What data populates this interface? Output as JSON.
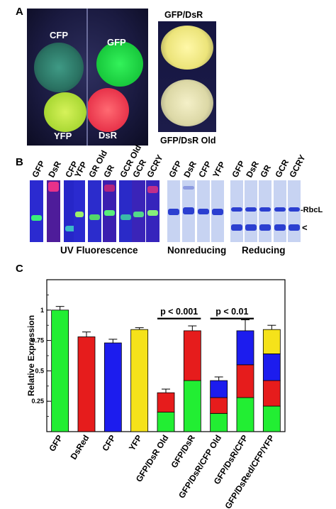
{
  "panels": {
    "a": "A",
    "b": "B",
    "c": "C"
  },
  "panel_a": {
    "leaf_labels": [
      "CFP",
      "GFP",
      "YFP",
      "DsR"
    ],
    "right_top_label": "GFP/DsR",
    "right_bottom_label": "GFP/DsR Old"
  },
  "panel_b": {
    "uv_lane_labels": [
      "GFP",
      "DsR",
      "CFP",
      "YFP",
      "GR Old",
      "GR",
      "GCR Old",
      "GCR",
      "GCRY"
    ],
    "nonreducing_lane_labels": [
      "GFP",
      "DsR",
      "CFP",
      "YFP"
    ],
    "reducing_lane_labels": [
      "GFP",
      "DsR",
      "GR",
      "GCR",
      "GCRY"
    ],
    "rbcl_label": "-RbcL",
    "arrow_label": "<",
    "captions": {
      "uv": "UV Fluorescence",
      "nonreducing": "Nonreducing",
      "reducing": "Reducing"
    }
  },
  "chart_data": {
    "type": "bar",
    "stacked": true,
    "ylabel": "Relative Expression",
    "ylim": [
      0,
      1.25
    ],
    "yticks": [
      0.25,
      0.5,
      0.75,
      1
    ],
    "ytick_labels": [
      "0.25",
      "0.5",
      "0.75",
      "1"
    ],
    "categories": [
      "GFP",
      "DsRed",
      "CFP",
      "YFP",
      "GFP/DsR Old",
      "GFP/DsR",
      "GFP/DsR/CFP Old",
      "GFP/DsR/CFP",
      "GFP/DsRed/CFP/YFP"
    ],
    "colors": {
      "green": "#22ee33",
      "red": "#e61c1c",
      "blue": "#1c1cee",
      "yellow": "#f5e21a"
    },
    "bars": [
      {
        "segments": [
          {
            "color": "green",
            "value": 1.0
          }
        ],
        "error": 0.03
      },
      {
        "segments": [
          {
            "color": "red",
            "value": 0.78
          }
        ],
        "error": 0.04
      },
      {
        "segments": [
          {
            "color": "blue",
            "value": 0.73
          }
        ],
        "error": 0.03
      },
      {
        "segments": [
          {
            "color": "yellow",
            "value": 0.84
          }
        ],
        "error": 0.015
      },
      {
        "segments": [
          {
            "color": "green",
            "value": 0.16
          },
          {
            "color": "red",
            "value": 0.16
          }
        ],
        "error": 0.03
      },
      {
        "segments": [
          {
            "color": "green",
            "value": 0.42
          },
          {
            "color": "red",
            "value": 0.41
          }
        ],
        "error": 0.04
      },
      {
        "segments": [
          {
            "color": "green",
            "value": 0.15
          },
          {
            "color": "red",
            "value": 0.13
          },
          {
            "color": "blue",
            "value": 0.14
          }
        ],
        "error": 0.03
      },
      {
        "segments": [
          {
            "color": "green",
            "value": 0.28
          },
          {
            "color": "red",
            "value": 0.27
          },
          {
            "color": "blue",
            "value": 0.28
          }
        ],
        "error": 0.09
      },
      {
        "segments": [
          {
            "color": "green",
            "value": 0.21
          },
          {
            "color": "red",
            "value": 0.21
          },
          {
            "color": "blue",
            "value": 0.22
          },
          {
            "color": "yellow",
            "value": 0.2
          }
        ],
        "error": 0.035
      }
    ],
    "annotations": [
      {
        "text": "p < 0.001",
        "from": 4,
        "to": 5,
        "y": 0.93
      },
      {
        "text": "p < 0.01",
        "from": 6,
        "to": 7,
        "y": 0.93
      }
    ]
  }
}
